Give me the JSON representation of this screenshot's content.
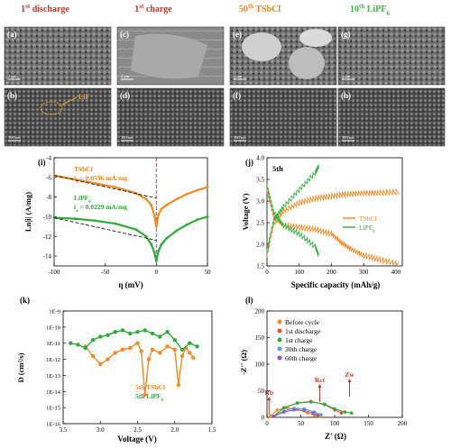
{
  "headers": [
    {
      "main": "1",
      "sup": "st",
      "rest": " discharge",
      "color": "#c0392b"
    },
    {
      "main": "1",
      "sup": "st",
      "rest": " charge",
      "color": "#c0392b"
    },
    {
      "main": "50",
      "sup": "th",
      "rest": " TSbCl",
      "color": "#e08a1e"
    },
    {
      "main": "10",
      "sup": "th",
      "rest": " LiPF",
      "sub": "6",
      "color": "#4caf50"
    }
  ],
  "sem_panels": [
    {
      "label": "(a)",
      "scale": "1 μm"
    },
    {
      "label": "(b)",
      "scale": "500 nm",
      "annotation": "LiF"
    },
    {
      "label": "(c)",
      "scale": "2 μm"
    },
    {
      "label": "(d)",
      "scale": "500 nm"
    },
    {
      "label": "(e)",
      "scale": "1 μm"
    },
    {
      "label": "(f)",
      "scale": "500 nm"
    },
    {
      "label": "(g)",
      "scale": "1 μm"
    },
    {
      "label": "(h)",
      "scale": "500 nm"
    }
  ],
  "panel_i": {
    "label": "(i)",
    "ylabel": "Ln|i| (A/mg)",
    "xlabel": "η (mV)",
    "legend": [
      {
        "name": "TSbCl",
        "i0": "i",
        "i0_sub": "o",
        "i0_val": "= 0.8596 mA/mg",
        "color": "#f08a24"
      },
      {
        "name": "LiPF",
        "name_sub": "6",
        "i0": "i",
        "i0_sub": "o",
        "i0_val": "= 0.0229 mA/mg",
        "color": "#2eaa3a"
      }
    ]
  },
  "panel_j": {
    "label": "(j)",
    "note": "5th",
    "ylabel": "Voltage (V)",
    "xlabel": "Specific capacity (mAh/g)",
    "legend": [
      {
        "name": "TSbCl",
        "color": "#f08a24"
      },
      {
        "name": "LiPF",
        "name_sub": "6",
        "color": "#2eaa3a"
      }
    ]
  },
  "panel_k": {
    "label": "(k)",
    "ylabel": "D (cm²/s)",
    "xlabel": "Voltage (V)",
    "legend": [
      {
        "name": "5th TSbCl",
        "color": "#f08a24"
      },
      {
        "name": "5th LiPF",
        "name_sub": "6",
        "color": "#2eaa3a"
      }
    ]
  },
  "panel_l": {
    "label": "(l)",
    "ylabel": "-Z'' (Ω)",
    "xlabel": "Z' (Ω)",
    "annotations": [
      "Rb",
      "Rct",
      "Zw"
    ],
    "legend": [
      {
        "name": "Before cycle",
        "color": "#f08a24"
      },
      {
        "name": "1st discharge",
        "color": "#e74c3c"
      },
      {
        "name": "1st charge",
        "color": "#2eaa3a"
      },
      {
        "name": "30th charge",
        "color": "#5aa0d8"
      },
      {
        "name": "60th charge",
        "color": "#8e5cc0"
      }
    ]
  },
  "chart_data": [
    {
      "type": "line",
      "panel": "i",
      "xlabel": "η (mV)",
      "ylabel": "Ln|i| (A/mg)",
      "xlim": [
        -100,
        50
      ],
      "ylim": [
        -15,
        -4
      ],
      "xticks": [
        -100,
        -50,
        0,
        50
      ],
      "yticks": [
        -4,
        -6,
        -8,
        -10,
        -12,
        -14
      ],
      "series": [
        {
          "name": "TSbCl",
          "x": [
            -100,
            -80,
            -60,
            -40,
            -20,
            -10,
            -5,
            -2,
            0,
            2,
            5,
            10,
            20,
            30,
            40,
            50
          ],
          "y": [
            -5.8,
            -6.2,
            -6.6,
            -7.0,
            -7.6,
            -8.2,
            -8.8,
            -9.8,
            -11.0,
            -9.8,
            -9.2,
            -8.8,
            -8.2,
            -7.7,
            -7.3,
            -7.0
          ]
        },
        {
          "name": "LiPF6",
          "x": [
            -100,
            -80,
            -60,
            -40,
            -20,
            -10,
            -5,
            -2,
            0,
            2,
            5,
            10,
            20,
            30,
            40,
            50
          ],
          "y": [
            -10.1,
            -10.2,
            -10.4,
            -10.7,
            -11.3,
            -12.0,
            -12.8,
            -13.6,
            -14.5,
            -13.5,
            -12.8,
            -12.2,
            -11.4,
            -10.8,
            -10.3,
            -10.0
          ]
        }
      ]
    },
    {
      "type": "line",
      "panel": "j",
      "xlabel": "Specific capacity (mAh/g)",
      "ylabel": "Voltage (V)",
      "xlim": [
        0,
        420
      ],
      "ylim": [
        1.5,
        4.0
      ],
      "xticks": [
        0,
        100,
        200,
        300,
        400
      ],
      "yticks": [
        1.5,
        2.0,
        2.5,
        3.0,
        3.5,
        4.0
      ],
      "series": [
        {
          "name": "TSbCl charge",
          "x": [
            0,
            20,
            50,
            100,
            150,
            200,
            250,
            300,
            350,
            410
          ],
          "y": [
            1.7,
            2.4,
            2.7,
            2.9,
            3.0,
            3.05,
            3.1,
            3.12,
            3.13,
            3.15
          ]
        },
        {
          "name": "TSbCl discharge",
          "x": [
            0,
            20,
            50,
            100,
            150,
            200,
            230,
            260,
            300,
            350,
            410
          ],
          "y": [
            3.3,
            2.7,
            2.5,
            2.45,
            2.4,
            2.3,
            2.1,
            1.95,
            1.8,
            1.7,
            1.6
          ]
        },
        {
          "name": "LiPF6 charge",
          "x": [
            0,
            20,
            50,
            100,
            150,
            160
          ],
          "y": [
            1.8,
            2.5,
            2.8,
            3.2,
            3.6,
            3.75
          ]
        },
        {
          "name": "LiPF6 discharge",
          "x": [
            0,
            20,
            50,
            100,
            150,
            160
          ],
          "y": [
            3.4,
            2.8,
            2.5,
            2.3,
            2.0,
            1.8
          ]
        }
      ]
    },
    {
      "type": "line",
      "panel": "k",
      "xlabel": "Voltage (V)",
      "ylabel": "D (cm²/s)",
      "xlim": [
        3.5,
        1.5
      ],
      "ylog_exp": [
        -16,
        -9
      ],
      "xticks": [
        3.5,
        3.0,
        2.5,
        2.0,
        1.5
      ],
      "ytick_labels": [
        "1E-9",
        "1E-10",
        "1E-11",
        "1E-12",
        "1E-13",
        "1E-14",
        "1E-15",
        "1E-16"
      ],
      "series": [
        {
          "name": "5th TSbCl",
          "x": [
            3.2,
            3.1,
            3.0,
            2.9,
            2.8,
            2.7,
            2.6,
            2.5,
            2.45,
            2.4,
            2.35,
            2.3,
            2.2,
            2.1,
            2.0,
            1.95,
            1.9,
            1.85,
            1.8,
            1.75
          ],
          "y": [
            -11.2,
            -11.8,
            -12.3,
            -12.0,
            -11.6,
            -11.4,
            -11.3,
            -11.0,
            -11.5,
            -14.2,
            -12.0,
            -11.4,
            -11.6,
            -11.2,
            -11.4,
            -13.6,
            -11.8,
            -11.3,
            -11.6,
            -11.9
          ]
        },
        {
          "name": "5th LiPF6",
          "x": [
            3.4,
            3.3,
            3.2,
            3.1,
            3.0,
            2.9,
            2.8,
            2.7,
            2.6,
            2.5,
            2.4,
            2.3,
            2.2,
            2.1,
            2.0,
            1.9,
            1.8,
            1.7
          ],
          "y": [
            -11.0,
            -11.1,
            -11.3,
            -10.8,
            -10.6,
            -10.5,
            -10.3,
            -10.2,
            -10.4,
            -10.3,
            -10.2,
            -10.4,
            -10.6,
            -10.3,
            -10.8,
            -11.4,
            -11.0,
            -11.2
          ]
        }
      ]
    },
    {
      "type": "scatter",
      "panel": "l",
      "xlabel": "Z' (Ω)",
      "ylabel": "-Z'' (Ω)",
      "xlim": [
        0,
        200
      ],
      "ylim": [
        0,
        200
      ],
      "xticks": [
        0,
        50,
        100,
        150,
        200
      ],
      "yticks": [
        0,
        50,
        100,
        150,
        200
      ],
      "series": [
        {
          "name": "Before cycle",
          "x": [
            5,
            15,
            30,
            45,
            60,
            70,
            78
          ],
          "y": [
            2,
            14,
            18,
            15,
            8,
            4,
            2
          ]
        },
        {
          "name": "1st discharge",
          "x": [
            10,
            25,
            45,
            65,
            85,
            100,
            110
          ],
          "y": [
            2,
            18,
            27,
            30,
            24,
            14,
            8
          ]
        },
        {
          "name": "1st charge",
          "x": [
            10,
            25,
            45,
            65,
            85,
            100,
            115,
            125
          ],
          "y": [
            2,
            18,
            27,
            29,
            25,
            16,
            10,
            8
          ]
        },
        {
          "name": "30th charge",
          "x": [
            10,
            25,
            40,
            55,
            70,
            80
          ],
          "y": [
            2,
            12,
            17,
            16,
            10,
            5
          ]
        },
        {
          "name": "60th charge",
          "x": [
            10,
            25,
            40,
            55,
            68,
            75
          ],
          "y": [
            2,
            10,
            14,
            13,
            8,
            4
          ]
        }
      ]
    }
  ]
}
